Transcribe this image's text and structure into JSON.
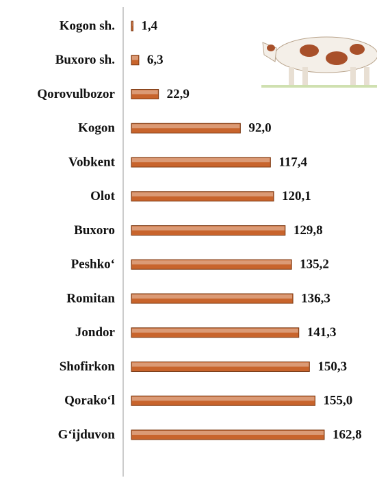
{
  "chart_data": {
    "type": "bar",
    "orientation": "horizontal",
    "categories": [
      "Kogon sh.",
      "Buxoro sh.",
      "Qorovulbozor",
      "Kogon",
      "Vobkent",
      "Olot",
      "Buxoro",
      "Peshko‘",
      "Romitan",
      "Jondor",
      "Shofirkon",
      "Qorako‘l",
      "G‘ijduvon"
    ],
    "values": [
      1.4,
      6.3,
      22.9,
      92.0,
      117.4,
      120.1,
      129.8,
      135.2,
      136.3,
      141.3,
      150.3,
      155.0,
      162.8
    ],
    "value_labels": [
      "1,4",
      "6,3",
      "22,9",
      "92,0",
      "117,4",
      "120,1",
      "129,8",
      "135,2",
      "136,3",
      "141,3",
      "150,3",
      "155,0",
      "162,8"
    ],
    "color": "#c8642c"
  }
}
